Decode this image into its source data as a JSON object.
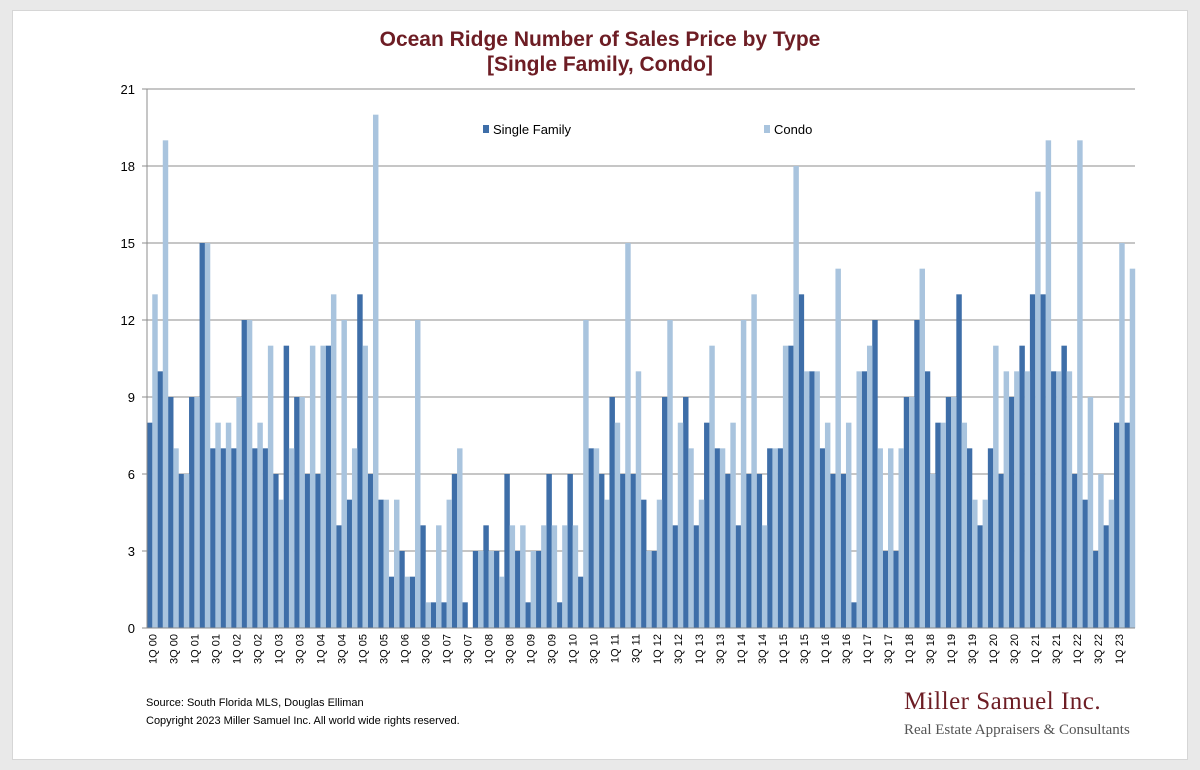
{
  "chart_data": {
    "type": "bar",
    "title": "Ocean Ridge Number of Sales Price by Type",
    "subtitle": "[Single Family, Condo]",
    "ylim": [
      0,
      21
    ],
    "yticks": [
      0,
      3,
      6,
      9,
      12,
      15,
      18,
      21
    ],
    "grid": true,
    "legend_position": "top-center",
    "categories": [
      "1Q 00",
      "2Q 00",
      "3Q 00",
      "4Q 00",
      "1Q 01",
      "2Q 01",
      "3Q 01",
      "4Q 01",
      "1Q 02",
      "2Q 02",
      "3Q 02",
      "4Q 02",
      "1Q 03",
      "2Q 03",
      "3Q 03",
      "4Q 03",
      "1Q 04",
      "2Q 04",
      "3Q 04",
      "4Q 04",
      "1Q 05",
      "2Q 05",
      "3Q 05",
      "4Q 05",
      "1Q 06",
      "2Q 06",
      "3Q 06",
      "4Q 06",
      "1Q 07",
      "2Q 07",
      "3Q 07",
      "4Q 07",
      "1Q 08",
      "2Q 08",
      "3Q 08",
      "4Q 08",
      "1Q 09",
      "2Q 09",
      "3Q 09",
      "4Q 09",
      "1Q 10",
      "2Q 10",
      "3Q 10",
      "4Q 10",
      "1Q 11",
      "2Q 11",
      "3Q 11",
      "4Q 11",
      "1Q 12",
      "2Q 12",
      "3Q 12",
      "4Q 12",
      "1Q 13",
      "2Q 13",
      "3Q 13",
      "4Q 13",
      "1Q 14",
      "2Q 14",
      "3Q 14",
      "4Q 14",
      "1Q 15",
      "2Q 15",
      "3Q 15",
      "4Q 15",
      "1Q 16",
      "2Q 16",
      "3Q 16",
      "4Q 16",
      "1Q 17",
      "2Q 17",
      "3Q 17",
      "4Q 17",
      "1Q 18",
      "2Q 18",
      "3Q 18",
      "4Q 18",
      "1Q 19",
      "2Q 19",
      "3Q 19",
      "4Q 19",
      "1Q 20",
      "2Q 20",
      "3Q 20",
      "4Q 20",
      "1Q 21",
      "2Q 21",
      "3Q 21",
      "4Q 21",
      "1Q 22",
      "2Q 22",
      "3Q 22",
      "4Q 22",
      "1Q 23",
      "2Q 23"
    ],
    "xtick_labels": [
      "1Q 00",
      "3Q 00",
      "1Q 01",
      "3Q 01",
      "1Q 02",
      "3Q 02",
      "1Q 03",
      "3Q 03",
      "1Q 04",
      "3Q 04",
      "1Q 05",
      "3Q 05",
      "1Q 06",
      "3Q 06",
      "1Q 07",
      "3Q 07",
      "1Q 08",
      "3Q 08",
      "1Q 09",
      "3Q 09",
      "1Q 10",
      "3Q 10",
      "1Q 11",
      "3Q 11",
      "1Q 12",
      "3Q 12",
      "1Q 13",
      "3Q 13",
      "1Q 14",
      "3Q 14",
      "1Q 15",
      "3Q 15",
      "1Q 16",
      "3Q 16",
      "1Q 17",
      "3Q 17",
      "1Q 18",
      "3Q 18",
      "1Q 19",
      "3Q 19",
      "1Q 20",
      "3Q 20",
      "1Q 21",
      "3Q 21",
      "1Q 22",
      "3Q 22",
      "1Q 23"
    ],
    "series": [
      {
        "name": "Single Family",
        "color": "#3e6ea8",
        "values": [
          8,
          10,
          9,
          6,
          9,
          15,
          7,
          7,
          7,
          12,
          7,
          7,
          6,
          11,
          9,
          6,
          6,
          11,
          4,
          5,
          13,
          6,
          5,
          2,
          3,
          2,
          4,
          1,
          1,
          6,
          1,
          3,
          4,
          3,
          6,
          3,
          1,
          3,
          6,
          1,
          6,
          2,
          7,
          6,
          9,
          6,
          6,
          5,
          3,
          9,
          4,
          9,
          4,
          8,
          7,
          6,
          4,
          6,
          6,
          7,
          7,
          11,
          13,
          10,
          7,
          6,
          6,
          1,
          10,
          12,
          3,
          3,
          9,
          12,
          10,
          8,
          9,
          13,
          7,
          4,
          7,
          6,
          9,
          11,
          13,
          13,
          10,
          11,
          6,
          5,
          3,
          4,
          8,
          8
        ]
      },
      {
        "name": "Condo",
        "color": "#a9c4de",
        "values": [
          13,
          19,
          7,
          6,
          9,
          15,
          8,
          8,
          9,
          12,
          8,
          11,
          5,
          7,
          9,
          11,
          11,
          13,
          12,
          7,
          11,
          20,
          5,
          5,
          2,
          12,
          1,
          4,
          5,
          7,
          0,
          3,
          3,
          2,
          4,
          4,
          3,
          4,
          4,
          4,
          4,
          12,
          7,
          5,
          8,
          15,
          10,
          3,
          5,
          12,
          8,
          7,
          5,
          11,
          7,
          8,
          12,
          13,
          4,
          7,
          11,
          18,
          10,
          10,
          8,
          14,
          8,
          10,
          11,
          7,
          7,
          7,
          9,
          14,
          6,
          8,
          9,
          8,
          5,
          5,
          11,
          10,
          10,
          10,
          17,
          19,
          10,
          10,
          19,
          9,
          6,
          5,
          15,
          14
        ]
      }
    ]
  },
  "footer": {
    "source": "Source: South Florida MLS, Douglas Elliman",
    "copyright": "Copyright 2023 Miller Samuel Inc.  All world wide rights reserved."
  },
  "logo": {
    "name": "Miller Samuel Inc.",
    "tagline": "Real Estate Appraisers & Consultants"
  }
}
